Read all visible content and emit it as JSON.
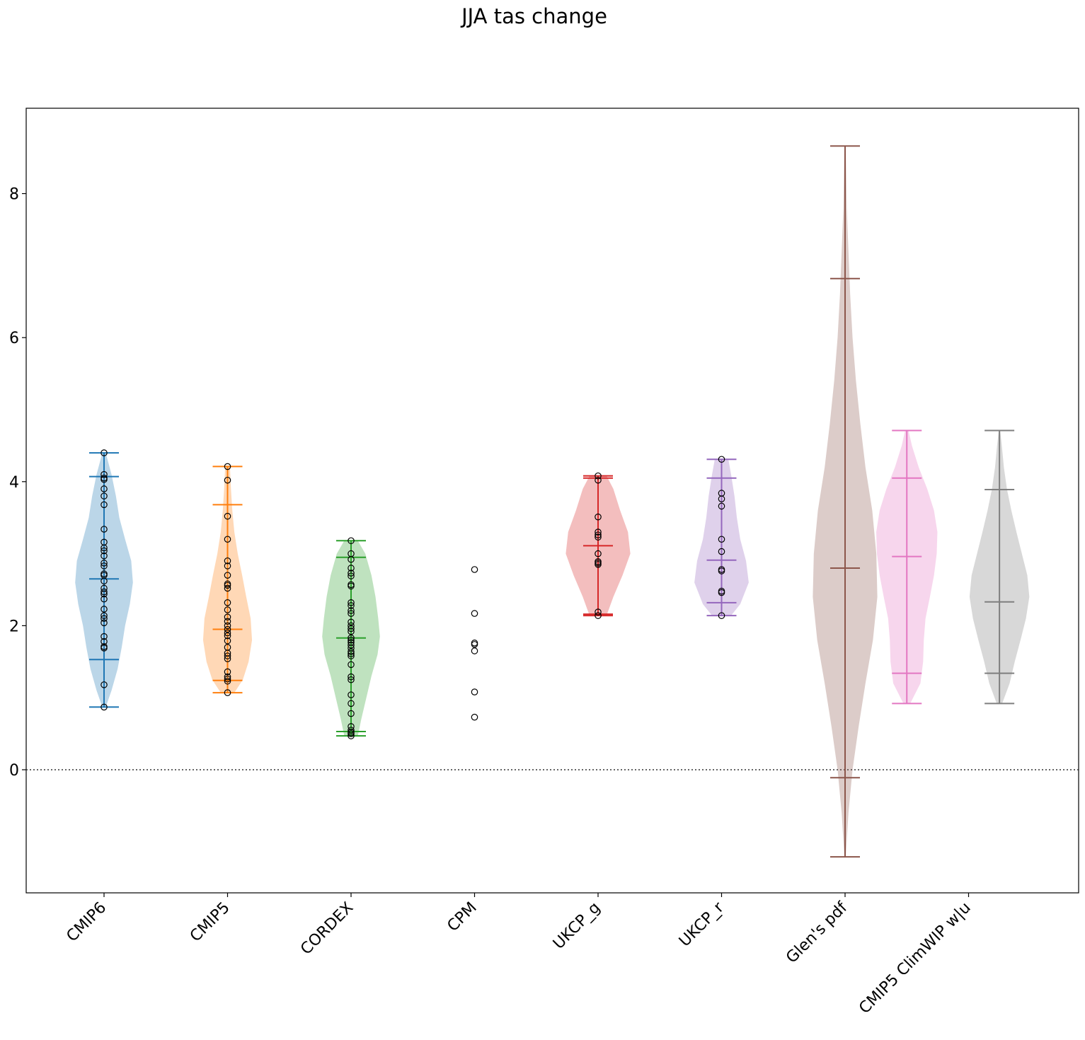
{
  "chart_data": {
    "type": "violin",
    "title": "JJA tas change",
    "xlabel": "",
    "ylabel": "",
    "ylim": [
      -1.7,
      9.2
    ],
    "yticks": [
      0,
      2,
      4,
      6,
      8
    ],
    "reference_line": {
      "y": 0,
      "style": "dotted"
    },
    "categories": [
      "CMIP6",
      "CMIP5",
      "CORDEX",
      "CPM",
      "UKCP_g",
      "UKCP_r",
      "Glen's pdf",
      "CMIP5 ClimWIP w|u"
    ],
    "series": [
      {
        "category": "CMIP6",
        "color": "#1f77b4",
        "min": 0.87,
        "max": 4.4,
        "quantiles": [
          1.53,
          2.65,
          4.07
        ],
        "density": [
          [
            0.87,
            0.05
          ],
          [
            1.1,
            0.22
          ],
          [
            1.4,
            0.4
          ],
          [
            1.7,
            0.52
          ],
          [
            2.0,
            0.62
          ],
          [
            2.3,
            0.76
          ],
          [
            2.6,
            0.85
          ],
          [
            2.9,
            0.8
          ],
          [
            3.2,
            0.62
          ],
          [
            3.5,
            0.45
          ],
          [
            3.8,
            0.35
          ],
          [
            4.1,
            0.22
          ],
          [
            4.4,
            0.05
          ]
        ],
        "points": [
          0.87,
          1.18,
          1.69,
          1.71,
          1.78,
          1.85,
          2.04,
          2.1,
          2.14,
          2.23,
          2.37,
          2.44,
          2.47,
          2.52,
          2.62,
          2.7,
          2.72,
          2.83,
          2.87,
          2.97,
          3.04,
          3.08,
          3.16,
          3.34,
          3.68,
          3.8,
          3.9,
          4.03,
          4.05,
          4.1,
          4.4
        ]
      },
      {
        "category": "CMIP5",
        "color": "#ff7f0e",
        "min": 1.07,
        "max": 4.21,
        "quantiles": [
          1.24,
          1.95,
          3.68
        ],
        "density": [
          [
            1.07,
            0.2
          ],
          [
            1.25,
            0.45
          ],
          [
            1.5,
            0.62
          ],
          [
            1.8,
            0.72
          ],
          [
            2.1,
            0.68
          ],
          [
            2.4,
            0.55
          ],
          [
            2.7,
            0.43
          ],
          [
            3.0,
            0.3
          ],
          [
            3.3,
            0.2
          ],
          [
            3.6,
            0.14
          ],
          [
            3.9,
            0.1
          ],
          [
            4.21,
            0.07
          ]
        ],
        "points": [
          1.07,
          1.23,
          1.26,
          1.29,
          1.36,
          1.54,
          1.58,
          1.62,
          1.7,
          1.79,
          1.86,
          1.9,
          1.95,
          2.0,
          2.06,
          2.12,
          2.22,
          2.32,
          2.52,
          2.56,
          2.58,
          2.7,
          2.83,
          2.9,
          3.2,
          3.52,
          4.02,
          4.21
        ]
      },
      {
        "category": "CORDEX",
        "color": "#2ca02c",
        "min": 0.47,
        "max": 3.18,
        "quantiles": [
          0.53,
          1.83,
          2.95
        ],
        "density": [
          [
            0.47,
            0.2
          ],
          [
            0.7,
            0.3
          ],
          [
            1.0,
            0.45
          ],
          [
            1.3,
            0.6
          ],
          [
            1.6,
            0.78
          ],
          [
            1.85,
            0.85
          ],
          [
            2.1,
            0.8
          ],
          [
            2.4,
            0.72
          ],
          [
            2.7,
            0.6
          ],
          [
            3.0,
            0.42
          ],
          [
            3.18,
            0.2
          ]
        ],
        "points": [
          0.47,
          0.5,
          0.52,
          0.55,
          0.6,
          0.78,
          0.92,
          1.04,
          1.25,
          1.29,
          1.46,
          1.58,
          1.61,
          1.64,
          1.69,
          1.73,
          1.77,
          1.8,
          1.83,
          1.92,
          1.96,
          2.0,
          2.05,
          2.17,
          2.21,
          2.28,
          2.32,
          2.55,
          2.57,
          2.69,
          2.73,
          2.8,
          2.92,
          3.0,
          3.18
        ]
      },
      {
        "category": "CPM",
        "color": "#d62728",
        "density": [],
        "points": [
          0.73,
          1.08,
          1.65,
          1.74,
          1.76,
          2.17,
          2.78
        ]
      },
      {
        "category": "UKCP_g",
        "color": "#d62728",
        "min": 2.14,
        "max": 4.08,
        "quantiles": [
          2.16,
          3.11,
          4.05
        ],
        "density": [
          [
            2.14,
            0.25
          ],
          [
            2.4,
            0.45
          ],
          [
            2.7,
            0.72
          ],
          [
            3.0,
            0.95
          ],
          [
            3.3,
            0.88
          ],
          [
            3.6,
            0.65
          ],
          [
            3.9,
            0.45
          ],
          [
            4.08,
            0.25
          ]
        ],
        "points": [
          2.14,
          2.19,
          2.85,
          2.87,
          2.89,
          3.0,
          3.23,
          3.26,
          3.3,
          3.51,
          4.02,
          4.08
        ]
      },
      {
        "category": "UKCP_r",
        "color": "#9467bd",
        "min": 2.14,
        "max": 4.31,
        "quantiles": [
          2.32,
          2.91,
          4.05
        ],
        "density": [
          [
            2.14,
            0.28
          ],
          [
            2.3,
            0.55
          ],
          [
            2.6,
            0.8
          ],
          [
            2.9,
            0.72
          ],
          [
            3.2,
            0.55
          ],
          [
            3.5,
            0.45
          ],
          [
            3.8,
            0.38
          ],
          [
            4.1,
            0.28
          ],
          [
            4.31,
            0.2
          ]
        ],
        "points": [
          2.14,
          2.46,
          2.48,
          2.76,
          2.78,
          3.03,
          3.2,
          3.66,
          3.76,
          3.84,
          4.31
        ]
      },
      {
        "category": "Glen's pdf",
        "color": "#8c564b",
        "min": -1.21,
        "max": 8.66,
        "quantiles": [
          -0.11,
          2.8,
          6.82
        ],
        "density": [
          [
            -1.21,
            0.02
          ],
          [
            -0.6,
            0.1
          ],
          [
            0.0,
            0.22
          ],
          [
            0.6,
            0.4
          ],
          [
            1.2,
            0.6
          ],
          [
            1.8,
            0.82
          ],
          [
            2.4,
            0.95
          ],
          [
            3.0,
            0.92
          ],
          [
            3.6,
            0.8
          ],
          [
            4.2,
            0.6
          ],
          [
            4.8,
            0.45
          ],
          [
            5.4,
            0.32
          ],
          [
            6.0,
            0.22
          ],
          [
            6.6,
            0.15
          ],
          [
            7.2,
            0.1
          ],
          [
            7.8,
            0.05
          ],
          [
            8.66,
            0.02
          ]
        ],
        "points": []
      },
      {
        "category": "CMIP5 ClimWIP w|u",
        "color": "#e377c2",
        "min": 0.92,
        "max": 4.71,
        "quantiles": [
          1.34,
          2.96,
          4.05
        ],
        "density": [
          [
            0.92,
            0.1
          ],
          [
            1.2,
            0.4
          ],
          [
            1.5,
            0.48
          ],
          [
            1.8,
            0.5
          ],
          [
            2.1,
            0.55
          ],
          [
            2.4,
            0.68
          ],
          [
            2.7,
            0.8
          ],
          [
            3.0,
            0.88
          ],
          [
            3.3,
            0.9
          ],
          [
            3.6,
            0.8
          ],
          [
            3.9,
            0.6
          ],
          [
            4.2,
            0.35
          ],
          [
            4.5,
            0.15
          ],
          [
            4.71,
            0.05
          ]
        ],
        "points": [],
        "offset": -0.5
      },
      {
        "category": "CMIP5 ClimWIP w|u",
        "color": "#7f7f7f",
        "min": 0.92,
        "max": 4.71,
        "quantiles": [
          1.34,
          2.33,
          3.89
        ],
        "density": [
          [
            0.92,
            0.08
          ],
          [
            1.2,
            0.3
          ],
          [
            1.5,
            0.45
          ],
          [
            1.8,
            0.62
          ],
          [
            2.1,
            0.78
          ],
          [
            2.4,
            0.88
          ],
          [
            2.7,
            0.82
          ],
          [
            3.0,
            0.66
          ],
          [
            3.3,
            0.5
          ],
          [
            3.6,
            0.35
          ],
          [
            3.9,
            0.22
          ],
          [
            4.2,
            0.13
          ],
          [
            4.5,
            0.07
          ],
          [
            4.71,
            0.02
          ]
        ],
        "points": [],
        "offset": 0.25
      }
    ]
  }
}
